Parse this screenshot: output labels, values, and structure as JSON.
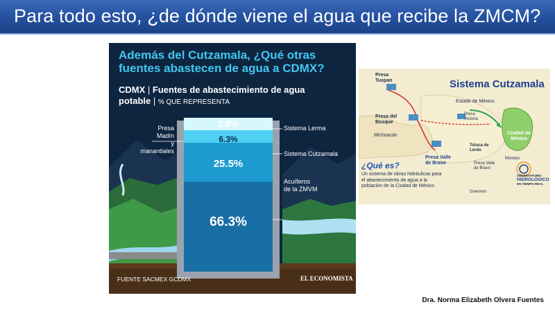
{
  "slide": {
    "title": "Para todo esto, ¿de dónde viene el agua que recibe la ZMCM?",
    "credit": "Dra. Norma Elizabeth Olvera Fuentes"
  },
  "infographic": {
    "heading_line1": "Además del Cutzamala, ¿Qué otras",
    "heading_line2": "fuentes abastecen de agua a CDMX?",
    "subheading_a": "CDMX",
    "subheading_b": "Fuentes de abastecimiento de agua",
    "subheading_c": "potable",
    "subheading_d": "% QUE REPRESENTA",
    "labels": {
      "madin_1": "Presa Madín",
      "madin_2": "y manantiales",
      "lerma": "Sistema Lerma",
      "cutzamala": "Sistema Cutzamala",
      "acuiferos_1": "Acuíferos",
      "acuiferos_2": "de la ZMVM"
    },
    "source": "FUENTE SACMEX GCDMX",
    "brand": "EL ECONOMISTA",
    "colors": {
      "background": "#0e2540",
      "heading": "#41c7f0",
      "layer1": "#d7f7ff",
      "layer2": "#4dd0f2",
      "layer3": "#1e9bd1",
      "layer4": "#176fa6"
    }
  },
  "chart_data": {
    "type": "bar",
    "categories": [
      "Presa Madín y manantiales",
      "Sistema Lerma",
      "Sistema Cutzamala",
      "Acuíferos de la ZMVM"
    ],
    "values": [
      1.8,
      6.3,
      25.5,
      66.3
    ],
    "value_labels": [
      "1.8%",
      "6.3%",
      "25.5%",
      "66.3%"
    ]
  },
  "map": {
    "title": "Sistema Cutzamala",
    "presa_tuxpan_1": "Presa",
    "presa_tuxpan_2": "Tuxpan",
    "presa_bosque_1": "Presa del",
    "presa_bosque_2": "Bosque",
    "michoacan": "Michoacán",
    "estado_mexico": "Estado de México",
    "presa_victoria_1": "Presa",
    "presa_victoria_2": "Victoria",
    "ciudad_1": "Ciudad de",
    "ciudad_2": "México",
    "toluca_1": "Toluca de",
    "toluca_2": "Lerdo",
    "presa_valle_1": "Presa Valle",
    "presa_valle_2": "de Bravo",
    "presa_valle_small_1": "Presa Valle",
    "presa_valle_small_2": "de Bravo",
    "morelos": "Morelos",
    "guerrero": "Guerrero",
    "que_es": "¿Qué es?",
    "que_es_body": "Un sistema de obras hidráulicas para el abastecimiento de agua a la población de la Ciudad de México",
    "logo_1": "OBSERVATORIO",
    "logo_2": "HIDROLÓGICO",
    "logo_3": "EN TIEMPO REAL"
  }
}
